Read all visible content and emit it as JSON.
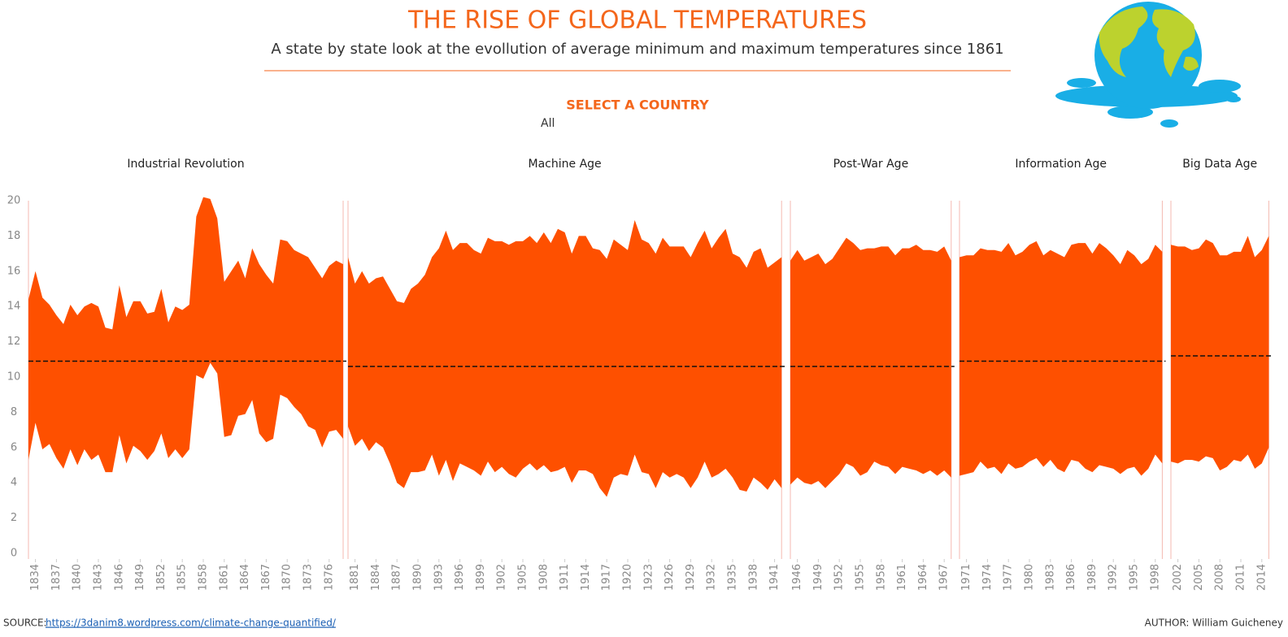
{
  "header": {
    "title": "THE RISE OF GLOBAL TEMPERATURES",
    "subtitle": "A state by state look at the evollution of average minimum and maximum temperatures since 1861",
    "filter_label": "SELECT A COUNTRY",
    "filter_value": "All"
  },
  "footer": {
    "source_label": "SOURCE:",
    "source_url": "https://3danim8.wordpress.com/climate-change-quantified/",
    "author": "AUTHOR: William Guicheney"
  },
  "chart_data": [
    {
      "type": "range_area",
      "title": "Industrial Revolution",
      "color": "#fe5000",
      "x": [
        1833,
        1834,
        1835,
        1836,
        1837,
        1838,
        1839,
        1840,
        1841,
        1842,
        1843,
        1844,
        1845,
        1846,
        1847,
        1848,
        1849,
        1850,
        1851,
        1852,
        1853,
        1854,
        1855,
        1856,
        1857,
        1858,
        1859,
        1860,
        1861,
        1862,
        1863,
        1864,
        1865,
        1866,
        1867,
        1868,
        1869,
        1870,
        1871,
        1872,
        1873,
        1874,
        1875,
        1876,
        1877,
        1878
      ],
      "high": [
        14.4,
        16.0,
        14.5,
        14.1,
        13.5,
        13.0,
        14.1,
        13.5,
        14.0,
        14.2,
        14.0,
        12.8,
        12.7,
        15.2,
        13.4,
        14.3,
        14.3,
        13.6,
        13.7,
        15.0,
        13.1,
        14.0,
        13.8,
        14.1,
        19.1,
        20.2,
        20.1,
        19.0,
        15.4,
        16.0,
        16.6,
        15.6,
        17.3,
        16.4,
        15.8,
        15.3,
        17.8,
        17.7,
        17.2,
        17.0,
        16.8,
        16.2,
        15.6,
        16.3,
        16.6,
        16.4
      ],
      "low": [
        5.3,
        7.4,
        5.9,
        6.2,
        5.4,
        4.8,
        5.9,
        5.0,
        5.9,
        5.3,
        5.6,
        4.6,
        4.6,
        6.7,
        5.1,
        6.1,
        5.8,
        5.3,
        5.8,
        6.8,
        5.4,
        5.9,
        5.4,
        5.9,
        10.1,
        9.9,
        10.8,
        10.2,
        6.6,
        6.7,
        7.8,
        7.9,
        8.7,
        6.8,
        6.3,
        6.5,
        9.0,
        8.8,
        8.3,
        7.9,
        7.2,
        7.0,
        6.0,
        6.9,
        7.0,
        6.5
      ],
      "reference_line": 10.9,
      "xlim": [
        1833,
        1878
      ],
      "xticks": [
        1834,
        1837,
        1840,
        1843,
        1846,
        1849,
        1852,
        1855,
        1858,
        1861,
        1864,
        1867,
        1870,
        1873,
        1876
      ],
      "ylim": [
        0,
        20
      ],
      "yticks": [
        0,
        2,
        4,
        6,
        8,
        10,
        12,
        14,
        16,
        18,
        20
      ]
    },
    {
      "type": "range_area",
      "title": "Machine Age",
      "color": "#fe5000",
      "x": [
        1880,
        1881,
        1882,
        1883,
        1884,
        1885,
        1886,
        1887,
        1888,
        1889,
        1890,
        1891,
        1892,
        1893,
        1894,
        1895,
        1896,
        1897,
        1898,
        1899,
        1900,
        1901,
        1902,
        1903,
        1904,
        1905,
        1906,
        1907,
        1908,
        1909,
        1910,
        1911,
        1912,
        1913,
        1914,
        1915,
        1916,
        1917,
        1918,
        1919,
        1920,
        1921,
        1922,
        1923,
        1924,
        1925,
        1926,
        1927,
        1928,
        1929,
        1930,
        1931,
        1932,
        1933,
        1934,
        1935,
        1936,
        1937,
        1938,
        1939,
        1940,
        1941,
        1942
      ],
      "high": [
        16.8,
        15.3,
        16.0,
        15.3,
        15.6,
        15.7,
        15.0,
        14.3,
        14.2,
        15.0,
        15.3,
        15.8,
        16.8,
        17.3,
        18.3,
        17.2,
        17.6,
        17.6,
        17.2,
        17.0,
        17.9,
        17.7,
        17.7,
        17.5,
        17.7,
        17.7,
        18.0,
        17.6,
        18.2,
        17.6,
        18.4,
        18.2,
        17.0,
        18.0,
        18.0,
        17.3,
        17.2,
        16.7,
        17.8,
        17.5,
        17.2,
        18.9,
        17.8,
        17.6,
        17.0,
        17.9,
        17.4,
        17.4,
        17.4,
        16.8,
        17.6,
        18.3,
        17.3,
        17.9,
        18.4,
        17.0,
        16.8,
        16.2,
        17.1,
        17.3,
        16.2,
        16.5,
        16.8
      ],
      "low": [
        7.2,
        6.1,
        6.5,
        5.8,
        6.3,
        6.0,
        5.1,
        4.0,
        3.7,
        4.6,
        4.6,
        4.7,
        5.6,
        4.4,
        5.3,
        4.1,
        5.1,
        4.9,
        4.7,
        4.4,
        5.2,
        4.6,
        4.9,
        4.5,
        4.3,
        4.8,
        5.1,
        4.7,
        5.0,
        4.6,
        4.7,
        4.9,
        4.0,
        4.7,
        4.7,
        4.5,
        3.7,
        3.2,
        4.3,
        4.5,
        4.4,
        5.6,
        4.6,
        4.5,
        3.7,
        4.6,
        4.3,
        4.5,
        4.3,
        3.7,
        4.3,
        5.2,
        4.3,
        4.5,
        4.8,
        4.3,
        3.6,
        3.5,
        4.3,
        4.0,
        3.6,
        4.2,
        3.7
      ],
      "reference_line": 10.6,
      "xlim": [
        1880,
        1942
      ],
      "xticks": [
        1881,
        1884,
        1887,
        1890,
        1893,
        1896,
        1899,
        1902,
        1905,
        1908,
        1911,
        1914,
        1917,
        1920,
        1923,
        1926,
        1929,
        1932,
        1935,
        1938,
        1941
      ],
      "ylim": [
        0,
        20
      ]
    },
    {
      "type": "range_area",
      "title": "Post-War Age",
      "color": "#fe5000",
      "x": [
        1945,
        1946,
        1947,
        1948,
        1949,
        1950,
        1951,
        1952,
        1953,
        1954,
        1955,
        1956,
        1957,
        1958,
        1959,
        1960,
        1961,
        1962,
        1963,
        1964,
        1965,
        1966,
        1967,
        1968
      ],
      "high": [
        16.6,
        17.2,
        16.6,
        16.8,
        17.0,
        16.4,
        16.7,
        17.3,
        17.9,
        17.6,
        17.2,
        17.3,
        17.3,
        17.4,
        17.4,
        16.9,
        17.3,
        17.3,
        17.5,
        17.2,
        17.2,
        17.1,
        17.4,
        16.6
      ],
      "low": [
        3.9,
        4.3,
        4.0,
        3.9,
        4.1,
        3.7,
        4.1,
        4.5,
        5.1,
        4.9,
        4.4,
        4.6,
        5.2,
        5.0,
        4.9,
        4.5,
        4.9,
        4.8,
        4.7,
        4.5,
        4.7,
        4.4,
        4.7,
        4.3
      ],
      "reference_line": 10.6,
      "xlim": [
        1945,
        1968
      ],
      "xticks": [
        1946,
        1949,
        1952,
        1955,
        1958,
        1961,
        1964,
        1967
      ],
      "ylim": [
        0,
        20
      ]
    },
    {
      "type": "range_area",
      "title": "Information Age",
      "color": "#fe5000",
      "x": [
        1970,
        1971,
        1972,
        1973,
        1974,
        1975,
        1976,
        1977,
        1978,
        1979,
        1980,
        1981,
        1982,
        1983,
        1984,
        1985,
        1986,
        1987,
        1988,
        1989,
        1990,
        1991,
        1992,
        1993,
        1994,
        1995,
        1996,
        1997,
        1998,
        1999
      ],
      "high": [
        16.8,
        16.9,
        16.9,
        17.3,
        17.2,
        17.2,
        17.1,
        17.6,
        16.9,
        17.1,
        17.5,
        17.7,
        16.9,
        17.2,
        17.0,
        16.8,
        17.5,
        17.6,
        17.6,
        17.0,
        17.6,
        17.3,
        16.9,
        16.4,
        17.2,
        16.9,
        16.4,
        16.7,
        17.5,
        17.1
      ],
      "low": [
        4.4,
        4.5,
        4.6,
        5.2,
        4.8,
        4.9,
        4.5,
        5.1,
        4.8,
        4.9,
        5.2,
        5.4,
        4.9,
        5.3,
        4.8,
        4.6,
        5.3,
        5.2,
        4.8,
        4.6,
        5.0,
        4.9,
        4.8,
        4.5,
        4.8,
        4.9,
        4.4,
        4.8,
        5.6,
        5.1
      ],
      "reference_line": 10.9,
      "xlim": [
        1970,
        1999
      ],
      "xticks": [
        1971,
        1974,
        1977,
        1980,
        1983,
        1986,
        1989,
        1992,
        1995,
        1998
      ],
      "ylim": [
        0,
        20
      ]
    },
    {
      "type": "range_area",
      "title": "Big Data Age",
      "color": "#fe5000",
      "x": [
        2001,
        2002,
        2003,
        2004,
        2005,
        2006,
        2007,
        2008,
        2009,
        2010,
        2011,
        2012,
        2013,
        2014,
        2015
      ],
      "high": [
        17.5,
        17.4,
        17.4,
        17.2,
        17.3,
        17.8,
        17.6,
        16.9,
        16.9,
        17.1,
        17.1,
        18.0,
        16.8,
        17.2,
        18.0
      ],
      "low": [
        5.2,
        5.1,
        5.3,
        5.3,
        5.2,
        5.5,
        5.4,
        4.7,
        4.9,
        5.3,
        5.2,
        5.6,
        4.8,
        5.1,
        6.0
      ],
      "reference_line": 11.2,
      "xlim": [
        2001,
        2015
      ],
      "xticks": [
        2002,
        2005,
        2008,
        2011,
        2014
      ],
      "ylim": [
        0,
        20
      ]
    }
  ]
}
